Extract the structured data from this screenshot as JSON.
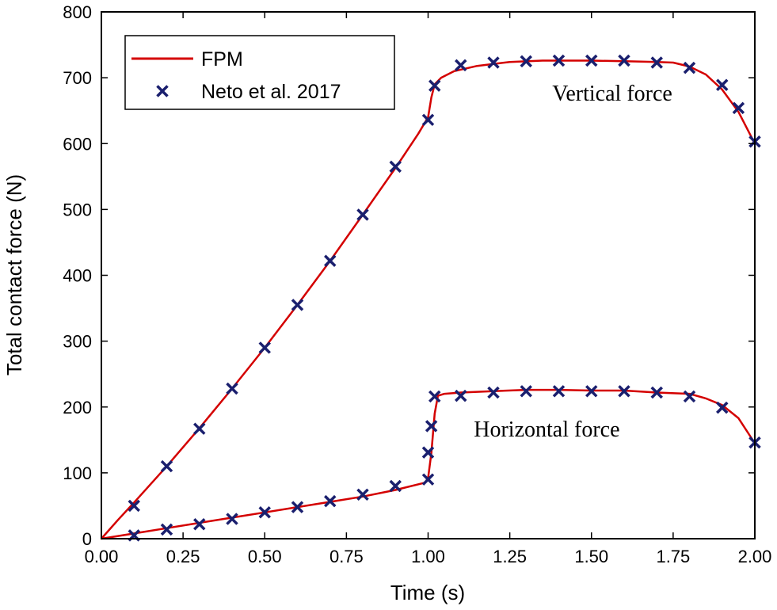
{
  "chart_data": {
    "type": "line",
    "xlabel": "Time (s)",
    "ylabel": "Total contact force (N)",
    "xlim": [
      0,
      2
    ],
    "ylim": [
      0,
      800
    ],
    "x_ticks": [
      0,
      0.25,
      0.5,
      0.75,
      1.0,
      1.25,
      1.5,
      1.75,
      2.0
    ],
    "x_tick_labels": [
      "0.00",
      "0.25",
      "0.50",
      "0.75",
      "1.00",
      "1.25",
      "1.50",
      "1.75",
      "2.00"
    ],
    "y_ticks": [
      0,
      100,
      200,
      300,
      400,
      500,
      600,
      700,
      800
    ],
    "y_tick_labels": [
      "0",
      "100",
      "200",
      "300",
      "400",
      "500",
      "600",
      "700",
      "800"
    ],
    "legend": {
      "placement": "top-left",
      "entries": [
        "FPM",
        "Neto et al. 2017"
      ]
    },
    "colors": {
      "fpm": "#d40000",
      "neto": "#1a1f6e"
    },
    "annotations": [
      {
        "text": "Vertical force",
        "x": 1.38,
        "y": 665
      },
      {
        "text": "Horizontal force",
        "x": 1.14,
        "y": 155
      }
    ],
    "series": [
      {
        "name": "FPM",
        "label": "Vertical force",
        "style": "line",
        "x": [
          0,
          0.05,
          0.1,
          0.2,
          0.3,
          0.4,
          0.5,
          0.6,
          0.7,
          0.8,
          0.9,
          0.97,
          1.0,
          1.01,
          1.02,
          1.04,
          1.08,
          1.15,
          1.25,
          1.35,
          1.5,
          1.6,
          1.7,
          1.75,
          1.8,
          1.85,
          1.9,
          1.95,
          2.0
        ],
        "y": [
          0,
          28,
          55,
          110,
          168,
          228,
          290,
          355,
          422,
          492,
          563,
          615,
          640,
          670,
          690,
          700,
          710,
          718,
          724,
          726,
          726,
          725,
          724,
          723,
          717,
          705,
          682,
          648,
          600
        ]
      },
      {
        "name": "FPM",
        "label": "Horizontal force",
        "style": "line",
        "x": [
          0,
          0.1,
          0.2,
          0.3,
          0.4,
          0.5,
          0.6,
          0.7,
          0.8,
          0.9,
          0.99,
          1.0,
          1.01,
          1.02,
          1.03,
          1.05,
          1.1,
          1.2,
          1.3,
          1.4,
          1.5,
          1.6,
          1.7,
          1.8,
          1.85,
          1.9,
          1.95,
          2.0
        ],
        "y": [
          0,
          8,
          16,
          24,
          32,
          40,
          48,
          56,
          64,
          74,
          85,
          92,
          130,
          190,
          217,
          220,
          222,
          224,
          226,
          226,
          225,
          225,
          222,
          220,
          213,
          203,
          183,
          145
        ]
      },
      {
        "name": "Neto et al. 2017",
        "label": "Vertical force",
        "style": "marker",
        "x": [
          0.1,
          0.2,
          0.3,
          0.4,
          0.5,
          0.6,
          0.7,
          0.8,
          0.9,
          1.0,
          1.02,
          1.1,
          1.2,
          1.3,
          1.4,
          1.5,
          1.6,
          1.7,
          1.8,
          1.9,
          1.95,
          2.0
        ],
        "y": [
          50,
          110,
          167,
          228,
          290,
          355,
          422,
          492,
          565,
          636,
          688,
          719,
          723,
          725,
          726,
          726,
          726,
          723,
          715,
          689,
          654,
          603
        ]
      },
      {
        "name": "Neto et al. 2017",
        "label": "Horizontal force",
        "style": "marker",
        "x": [
          0.1,
          0.2,
          0.3,
          0.4,
          0.5,
          0.6,
          0.7,
          0.8,
          0.9,
          1.0,
          1.0,
          1.01,
          1.02,
          1.1,
          1.2,
          1.3,
          1.4,
          1.5,
          1.6,
          1.7,
          1.8,
          1.9,
          2.0
        ],
        "y": [
          5,
          14,
          22,
          30,
          40,
          48,
          57,
          67,
          80,
          90,
          131,
          171,
          216,
          217,
          222,
          224,
          224,
          224,
          224,
          222,
          216,
          199,
          146
        ]
      }
    ]
  }
}
